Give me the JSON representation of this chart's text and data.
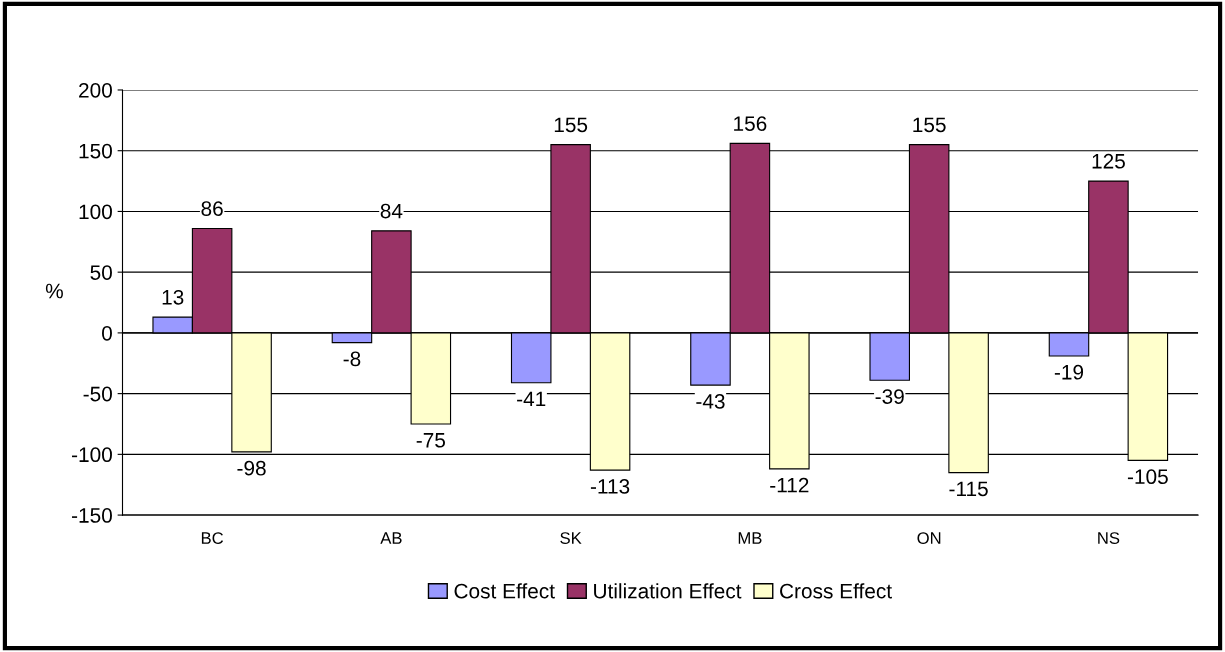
{
  "chart_data": {
    "type": "bar",
    "ylabel": "%",
    "categories": [
      "BC",
      "AB",
      "SK",
      "MB",
      "ON",
      "NS"
    ],
    "series": [
      {
        "name": "Cost Effect",
        "color": "#9999ff",
        "values": [
          13,
          -8,
          -41,
          -43,
          -39,
          -19
        ]
      },
      {
        "name": "Utilization Effect",
        "color": "#993366",
        "values": [
          86,
          84,
          155,
          156,
          155,
          125
        ]
      },
      {
        "name": "Cross Effect",
        "color": "#ffffcc",
        "values": [
          -98,
          -75,
          -113,
          -112,
          -115,
          -105
        ]
      }
    ],
    "ylim": [
      -150,
      200
    ],
    "yticks": [
      -150,
      -100,
      -50,
      0,
      50,
      100,
      150,
      200
    ],
    "grid": "y",
    "legend": "bottom",
    "data_labels": true
  }
}
